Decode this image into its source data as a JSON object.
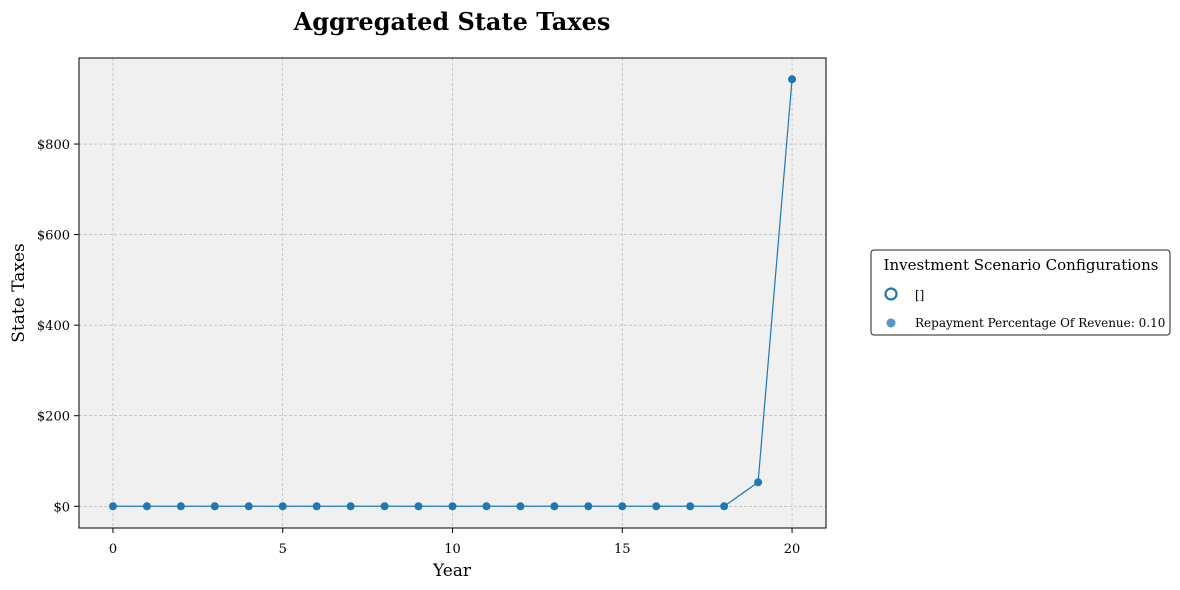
{
  "chart_data": {
    "type": "line",
    "title": "Aggregated State Taxes",
    "xlabel": "Year",
    "ylabel": "State Taxes",
    "xlim": [
      -1,
      21
    ],
    "ylim": [
      -48,
      990
    ],
    "x_ticks": [
      0,
      5,
      10,
      15,
      20
    ],
    "y_ticks": [
      0,
      200,
      400,
      600,
      800
    ],
    "y_tick_labels": [
      "$0",
      "$200",
      "$400",
      "$600",
      "$800"
    ],
    "grid": true,
    "legend_placement": "right",
    "legend_title": "Investment Scenario Configurations",
    "legend_entries": [
      {
        "label": "[]",
        "marker": "hollow-circle"
      },
      {
        "label": "Repayment Percentage Of Revenue: 0.10",
        "marker": "filled-circle"
      }
    ],
    "series": [
      {
        "color": "#1f77b4",
        "x": [
          0,
          1,
          2,
          3,
          4,
          5,
          6,
          7,
          8,
          9,
          10,
          11,
          12,
          13,
          14,
          15,
          16,
          17,
          18,
          19,
          20
        ],
        "y": [
          0,
          0,
          0,
          0,
          0,
          0,
          0,
          0,
          0,
          0,
          0,
          0,
          0,
          0,
          0,
          0,
          0,
          0,
          0,
          53,
          943
        ]
      }
    ],
    "colors": {
      "series": "#1f77b4",
      "plot_bg": "#f0f0f0",
      "grid": "#b0b0b0"
    }
  }
}
